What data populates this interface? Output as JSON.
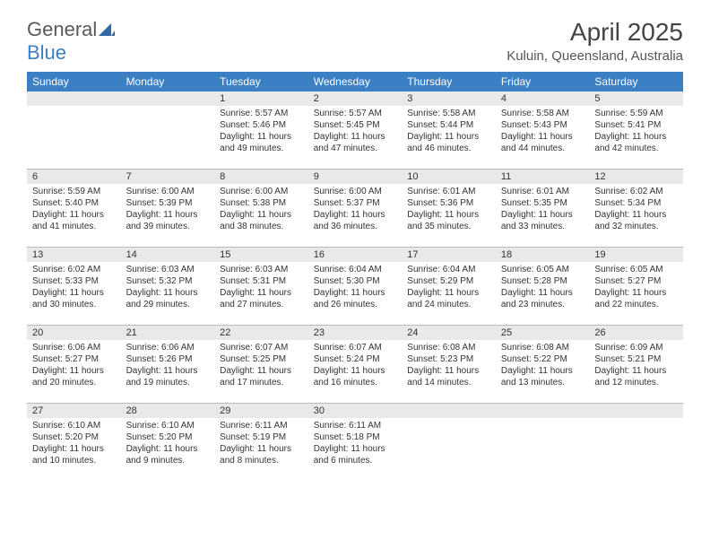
{
  "logo": {
    "text1": "General",
    "text2": "Blue"
  },
  "title": "April 2025",
  "location": "Kuluin, Queensland, Australia",
  "colors": {
    "header_bg": "#3b7fc4",
    "header_text": "#ffffff",
    "daynum_bg": "#e9e9e9",
    "page_bg": "#ffffff",
    "text": "#333333",
    "grid_border": "#bbbbbb"
  },
  "typography": {
    "title_fontsize": 28,
    "location_fontsize": 15,
    "dayname_fontsize": 12,
    "daynum_fontsize": 11,
    "body_fontsize": 10
  },
  "layout": {
    "columns": 7,
    "rows": 5,
    "cell_min_height": 86
  },
  "daynames": [
    "Sunday",
    "Monday",
    "Tuesday",
    "Wednesday",
    "Thursday",
    "Friday",
    "Saturday"
  ],
  "labels": {
    "sunrise": "Sunrise:",
    "sunset": "Sunset:",
    "daylight": "Daylight:"
  },
  "weeks": [
    [
      {
        "empty": true
      },
      {
        "empty": true
      },
      {
        "day": "1",
        "sunrise": "5:57 AM",
        "sunset": "5:46 PM",
        "daylight": "11 hours and 49 minutes."
      },
      {
        "day": "2",
        "sunrise": "5:57 AM",
        "sunset": "5:45 PM",
        "daylight": "11 hours and 47 minutes."
      },
      {
        "day": "3",
        "sunrise": "5:58 AM",
        "sunset": "5:44 PM",
        "daylight": "11 hours and 46 minutes."
      },
      {
        "day": "4",
        "sunrise": "5:58 AM",
        "sunset": "5:43 PM",
        "daylight": "11 hours and 44 minutes."
      },
      {
        "day": "5",
        "sunrise": "5:59 AM",
        "sunset": "5:41 PM",
        "daylight": "11 hours and 42 minutes."
      }
    ],
    [
      {
        "day": "6",
        "sunrise": "5:59 AM",
        "sunset": "5:40 PM",
        "daylight": "11 hours and 41 minutes."
      },
      {
        "day": "7",
        "sunrise": "6:00 AM",
        "sunset": "5:39 PM",
        "daylight": "11 hours and 39 minutes."
      },
      {
        "day": "8",
        "sunrise": "6:00 AM",
        "sunset": "5:38 PM",
        "daylight": "11 hours and 38 minutes."
      },
      {
        "day": "9",
        "sunrise": "6:00 AM",
        "sunset": "5:37 PM",
        "daylight": "11 hours and 36 minutes."
      },
      {
        "day": "10",
        "sunrise": "6:01 AM",
        "sunset": "5:36 PM",
        "daylight": "11 hours and 35 minutes."
      },
      {
        "day": "11",
        "sunrise": "6:01 AM",
        "sunset": "5:35 PM",
        "daylight": "11 hours and 33 minutes."
      },
      {
        "day": "12",
        "sunrise": "6:02 AM",
        "sunset": "5:34 PM",
        "daylight": "11 hours and 32 minutes."
      }
    ],
    [
      {
        "day": "13",
        "sunrise": "6:02 AM",
        "sunset": "5:33 PM",
        "daylight": "11 hours and 30 minutes."
      },
      {
        "day": "14",
        "sunrise": "6:03 AM",
        "sunset": "5:32 PM",
        "daylight": "11 hours and 29 minutes."
      },
      {
        "day": "15",
        "sunrise": "6:03 AM",
        "sunset": "5:31 PM",
        "daylight": "11 hours and 27 minutes."
      },
      {
        "day": "16",
        "sunrise": "6:04 AM",
        "sunset": "5:30 PM",
        "daylight": "11 hours and 26 minutes."
      },
      {
        "day": "17",
        "sunrise": "6:04 AM",
        "sunset": "5:29 PM",
        "daylight": "11 hours and 24 minutes."
      },
      {
        "day": "18",
        "sunrise": "6:05 AM",
        "sunset": "5:28 PM",
        "daylight": "11 hours and 23 minutes."
      },
      {
        "day": "19",
        "sunrise": "6:05 AM",
        "sunset": "5:27 PM",
        "daylight": "11 hours and 22 minutes."
      }
    ],
    [
      {
        "day": "20",
        "sunrise": "6:06 AM",
        "sunset": "5:27 PM",
        "daylight": "11 hours and 20 minutes."
      },
      {
        "day": "21",
        "sunrise": "6:06 AM",
        "sunset": "5:26 PM",
        "daylight": "11 hours and 19 minutes."
      },
      {
        "day": "22",
        "sunrise": "6:07 AM",
        "sunset": "5:25 PM",
        "daylight": "11 hours and 17 minutes."
      },
      {
        "day": "23",
        "sunrise": "6:07 AM",
        "sunset": "5:24 PM",
        "daylight": "11 hours and 16 minutes."
      },
      {
        "day": "24",
        "sunrise": "6:08 AM",
        "sunset": "5:23 PM",
        "daylight": "11 hours and 14 minutes."
      },
      {
        "day": "25",
        "sunrise": "6:08 AM",
        "sunset": "5:22 PM",
        "daylight": "11 hours and 13 minutes."
      },
      {
        "day": "26",
        "sunrise": "6:09 AM",
        "sunset": "5:21 PM",
        "daylight": "11 hours and 12 minutes."
      }
    ],
    [
      {
        "day": "27",
        "sunrise": "6:10 AM",
        "sunset": "5:20 PM",
        "daylight": "11 hours and 10 minutes."
      },
      {
        "day": "28",
        "sunrise": "6:10 AM",
        "sunset": "5:20 PM",
        "daylight": "11 hours and 9 minutes."
      },
      {
        "day": "29",
        "sunrise": "6:11 AM",
        "sunset": "5:19 PM",
        "daylight": "11 hours and 8 minutes."
      },
      {
        "day": "30",
        "sunrise": "6:11 AM",
        "sunset": "5:18 PM",
        "daylight": "11 hours and 6 minutes."
      },
      {
        "empty": true
      },
      {
        "empty": true
      },
      {
        "empty": true
      }
    ]
  ]
}
